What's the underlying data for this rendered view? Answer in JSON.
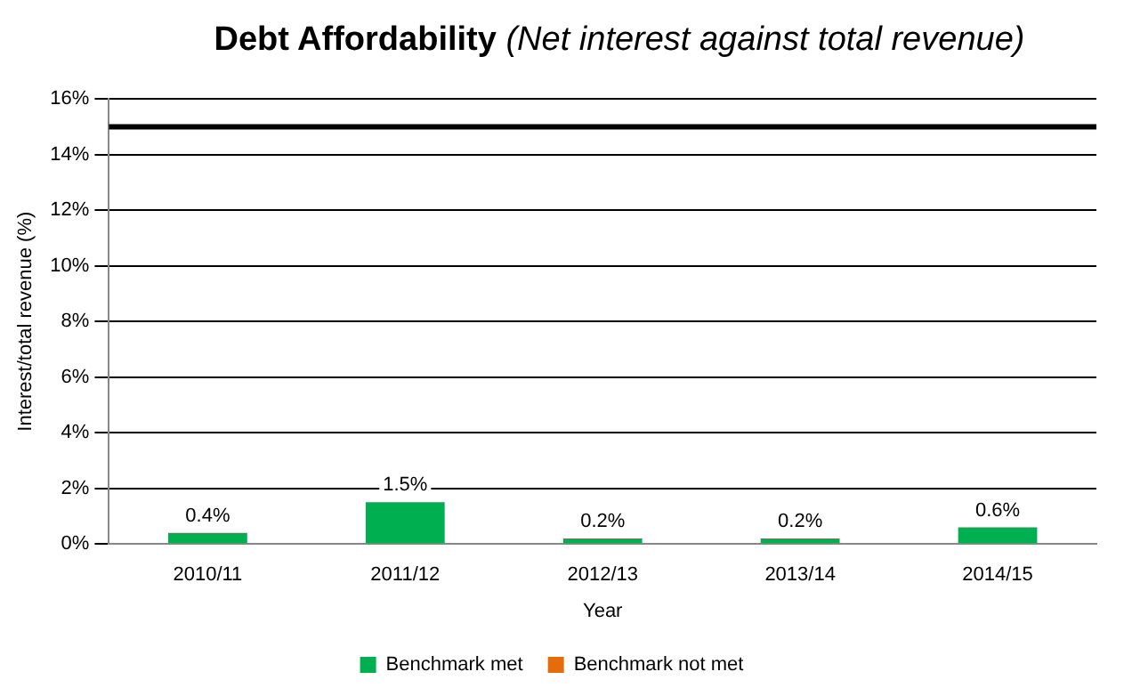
{
  "chart_data": {
    "type": "bar",
    "title": "Debt Affordability",
    "subtitle": "(Net interest against total revenue)",
    "xlabel": "Year",
    "ylabel": "Interest/total revenue (%)",
    "categories": [
      "2010/11",
      "2011/12",
      "2012/13",
      "2013/14",
      "2014/15"
    ],
    "series": [
      {
        "name": "Benchmark met",
        "color": "#00b050",
        "values": [
          0.4,
          1.5,
          0.2,
          0.2,
          0.6
        ],
        "value_labels": [
          "0.4%",
          "1.5%",
          "0.2%",
          "0.2%",
          "0.6%"
        ]
      },
      {
        "name": "Benchmark not met",
        "color": "#e46c0a",
        "values": [
          null,
          null,
          null,
          null,
          null
        ]
      }
    ],
    "ylim": [
      0,
      16
    ],
    "yticks": [
      {
        "value": 0,
        "label": "0%"
      },
      {
        "value": 2,
        "label": "2%"
      },
      {
        "value": 4,
        "label": "4%"
      },
      {
        "value": 6,
        "label": "6%"
      },
      {
        "value": 8,
        "label": "8%"
      },
      {
        "value": 10,
        "label": "10%"
      },
      {
        "value": 12,
        "label": "12%"
      },
      {
        "value": 14,
        "label": "14%"
      },
      {
        "value": 16,
        "label": "16%"
      }
    ],
    "ref_lines": [
      {
        "axis": "y",
        "value": 15,
        "color": "#000000"
      }
    ],
    "grid": "y",
    "legend": "bottom"
  }
}
